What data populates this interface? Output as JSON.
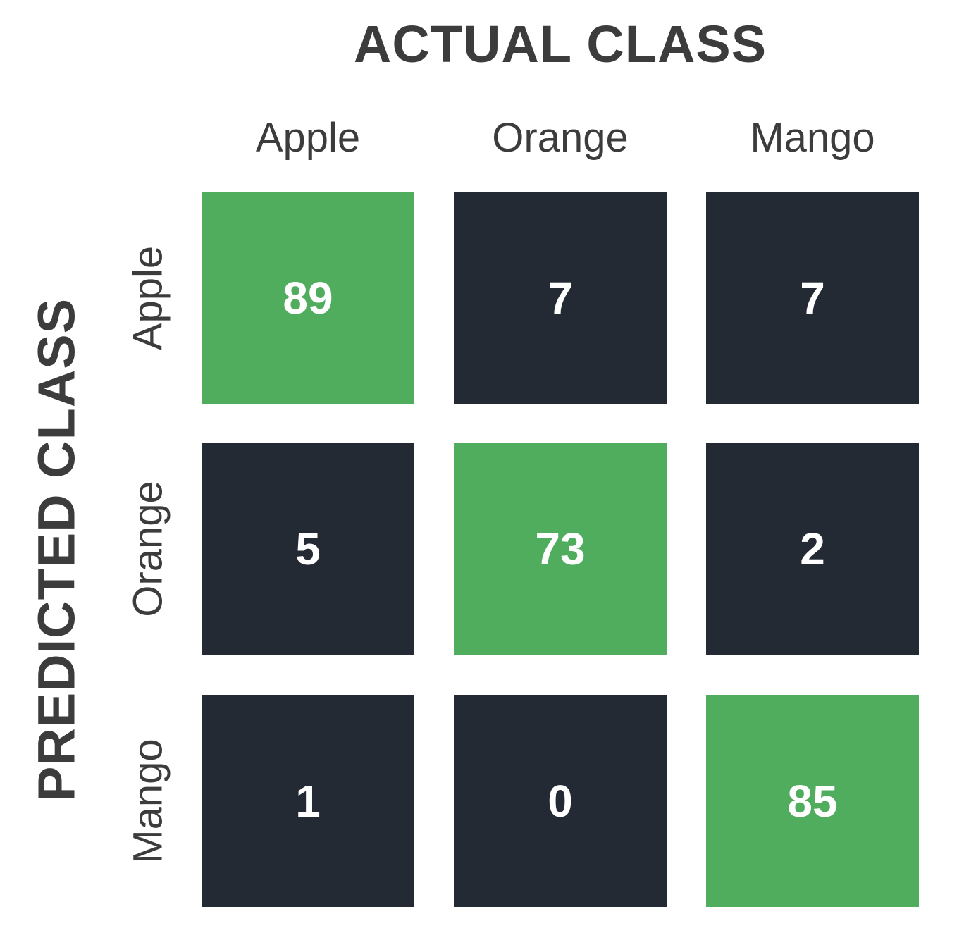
{
  "chart_data": {
    "type": "heatmap",
    "title": "ACTUAL CLASS",
    "ylabel": "PREDICTED CLASS",
    "x_categories": [
      "Apple",
      "Orange",
      "Mango"
    ],
    "y_categories": [
      "Apple",
      "Orange",
      "Mango"
    ],
    "values": [
      [
        89,
        7,
        7
      ],
      [
        5,
        73,
        2
      ],
      [
        1,
        0,
        85
      ]
    ],
    "colors": {
      "diagonal": "#51ad5e",
      "off_diagonal": "#242a34",
      "value_text": "#ffffff",
      "label_text": "#3c3c3c"
    }
  }
}
